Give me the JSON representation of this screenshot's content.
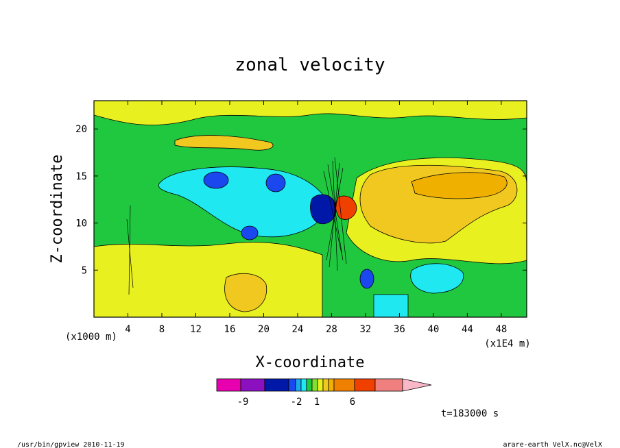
{
  "chart_data": {
    "type": "heatmap",
    "title": "zonal velocity",
    "xlabel": "X-coordinate",
    "ylabel": "Z-coordinate",
    "x_unit": "(x1E4 m)",
    "y_unit": "(x1000 m)",
    "xlim": [
      0,
      51
    ],
    "ylim": [
      0,
      23
    ],
    "x_ticks": [
      4,
      8,
      12,
      16,
      20,
      24,
      28,
      32,
      36,
      40,
      44,
      48
    ],
    "y_ticks": [
      5,
      10,
      15,
      20
    ],
    "colorbar": {
      "colors": [
        "#e800b0",
        "#8a10c0",
        "#0018a8",
        "#1a48ee",
        "#1aa8f0",
        "#20e8f0",
        "#20c840",
        "#80e030",
        "#e8f020",
        "#f0c820",
        "#f0b000",
        "#f08000",
        "#f04000",
        "#f08080",
        "#f8b8c8"
      ],
      "tick_labels": [
        "-9",
        "-2",
        "1",
        "6"
      ]
    },
    "regions": [
      {
        "kind": "blue",
        "cx": 19,
        "cy": 14,
        "rx": 4,
        "ry": 1.6
      },
      {
        "kind": "blue",
        "cx": 27.5,
        "cy": 11.5,
        "rx": 1.4,
        "ry": 2
      },
      {
        "kind": "red",
        "cx": 30,
        "cy": 11.5,
        "rx": 1.4,
        "ry": 1.8
      },
      {
        "kind": "orange",
        "cx": 40,
        "cy": 13.5,
        "rx": 6,
        "ry": 2.2
      },
      {
        "kind": "cyan",
        "cx": 40,
        "cy": 4.5,
        "rx": 3.5,
        "ry": 1.5
      }
    ],
    "time_label": "t=183000 s"
  },
  "footer": {
    "left": "/usr/bin/gpview  2010-11-19",
    "right": "arare-earth_VelX.nc@VelX"
  }
}
